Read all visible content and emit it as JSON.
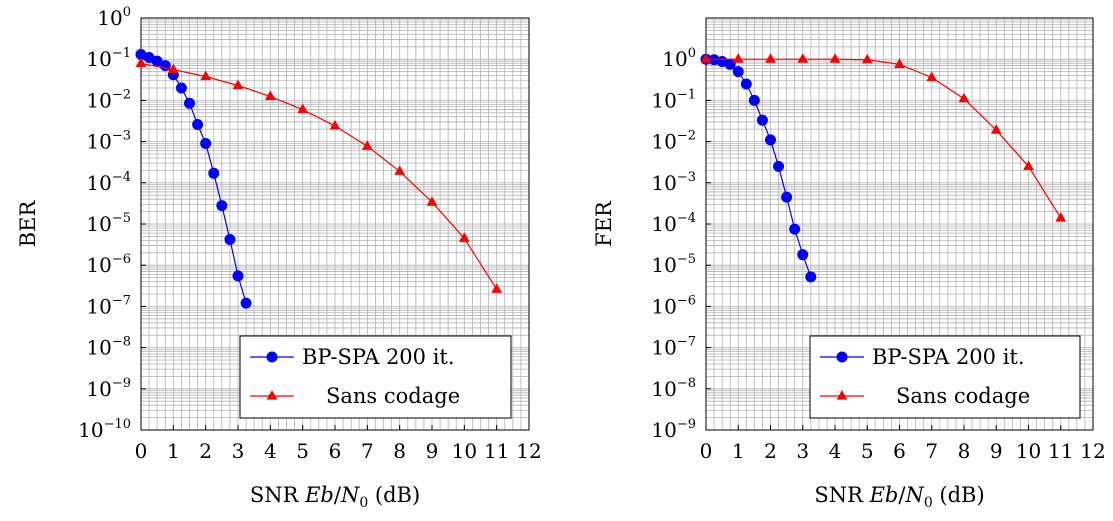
{
  "chart_data": [
    {
      "type": "line",
      "ylabel": "BER",
      "xlabel": "SNR Eb/N0 (dB)",
      "xlabel_parts": {
        "a": "SNR ",
        "b": "Eb",
        "c": "/",
        "d": "N",
        "e": "0",
        "f": " (dB)"
      },
      "yscale": "log",
      "ylim": [
        1e-10,
        1
      ],
      "xlim": [
        0,
        12
      ],
      "grid": true,
      "legend_placement": "bottom-right",
      "xticks": [
        0,
        1,
        2,
        3,
        4,
        5,
        6,
        7,
        8,
        9,
        10,
        11,
        12
      ],
      "yticks_exp": [
        0,
        -1,
        -2,
        -3,
        -4,
        -5,
        -6,
        -7,
        -8,
        -9,
        -10
      ],
      "series": [
        {
          "name": "BP-SPA 200 it.",
          "color": "#0000ff",
          "marker": "circle",
          "x": [
            0,
            0.25,
            0.5,
            0.75,
            1,
            1.25,
            1.5,
            1.75,
            2,
            2.25,
            2.5,
            2.75,
            3,
            3.25
          ],
          "y": [
            0.13,
            0.11,
            0.09,
            0.07,
            0.042,
            0.02,
            0.0085,
            0.0026,
            0.0009,
            0.00017,
            2.8e-05,
            4.2e-06,
            5.5e-07,
            1.2e-07
          ]
        },
        {
          "name": "Sans codage",
          "color": "#ff0000",
          "marker": "triangle",
          "x": [
            0,
            1,
            2,
            3,
            4,
            5,
            6,
            7,
            8,
            9,
            10,
            11
          ],
          "y": [
            0.079,
            0.056,
            0.038,
            0.023,
            0.0125,
            0.006,
            0.0024,
            0.00077,
            0.00019,
            3.4e-05,
            4.5e-06,
            2.6e-07
          ]
        }
      ]
    },
    {
      "type": "line",
      "ylabel": "FER",
      "xlabel": "SNR Eb/N0 (dB)",
      "xlabel_parts": {
        "a": "SNR ",
        "b": "Eb",
        "c": "/",
        "d": "N",
        "e": "0",
        "f": " (dB)"
      },
      "yscale": "log",
      "ylim": [
        1e-09,
        10
      ],
      "xlim": [
        0,
        12
      ],
      "grid": true,
      "legend_placement": "bottom-right",
      "xticks": [
        0,
        1,
        2,
        3,
        4,
        5,
        6,
        7,
        8,
        9,
        10,
        11,
        12
      ],
      "yticks_exp": [
        0,
        -1,
        -2,
        -3,
        -4,
        -5,
        -6,
        -7,
        -8,
        -9
      ],
      "series": [
        {
          "name": "BP-SPA 200 it.",
          "color": "#0000ff",
          "marker": "circle",
          "x": [
            0,
            0.25,
            0.5,
            0.75,
            1,
            1.25,
            1.5,
            1.75,
            2,
            2.25,
            2.5,
            2.75,
            3,
            3.25
          ],
          "y": [
            1,
            0.97,
            0.88,
            0.75,
            0.5,
            0.25,
            0.1,
            0.033,
            0.011,
            0.0025,
            0.00045,
            7.5e-05,
            1.8e-05,
            5.2e-06
          ]
        },
        {
          "name": "Sans codage",
          "color": "#ff0000",
          "marker": "triangle",
          "x": [
            0,
            1,
            2,
            3,
            4,
            5,
            6,
            7,
            8,
            9,
            10,
            11
          ],
          "y": [
            1,
            1,
            1,
            1,
            1,
            0.97,
            0.75,
            0.36,
            0.11,
            0.019,
            0.0025,
            0.00014
          ]
        }
      ]
    }
  ]
}
